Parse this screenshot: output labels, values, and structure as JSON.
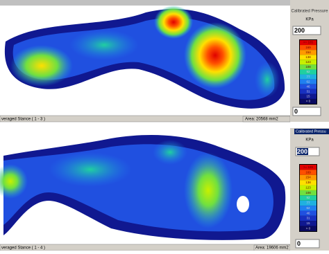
{
  "panels": [
    {
      "status": "veraged Stance ( 1 - 3 )",
      "area": "Area: 20568 mm2",
      "legend_title": "Calibrated Pressure",
      "unit": "KPa",
      "max": "200",
      "min": "0"
    },
    {
      "status": "veraged Stance ( 1 - 4 )",
      "area": "Area: 19606 mm2",
      "legend_title": "Calibrated Pressu",
      "unit": "KPa",
      "max": "200",
      "min": "0"
    }
  ],
  "legend": [
    {
      "label": ">= 185",
      "color": "#e00000"
    },
    {
      "label": "169",
      "color": "#ff5000"
    },
    {
      "label": "154",
      "color": "#ff9a00"
    },
    {
      "label": "138",
      "color": "#ffe000"
    },
    {
      "label": "123",
      "color": "#c8f000"
    },
    {
      "label": "108",
      "color": "#70e040"
    },
    {
      "label": "92",
      "color": "#20d0a0"
    },
    {
      "label": "77",
      "color": "#20b0e0"
    },
    {
      "label": "62",
      "color": "#2080f0"
    },
    {
      "label": "46",
      "color": "#2050e0"
    },
    {
      "label": "31",
      "color": "#1830c0"
    },
    {
      "label": "15",
      "color": "#101890"
    },
    {
      "label": "> 0",
      "color": "#0a0a60"
    }
  ]
}
